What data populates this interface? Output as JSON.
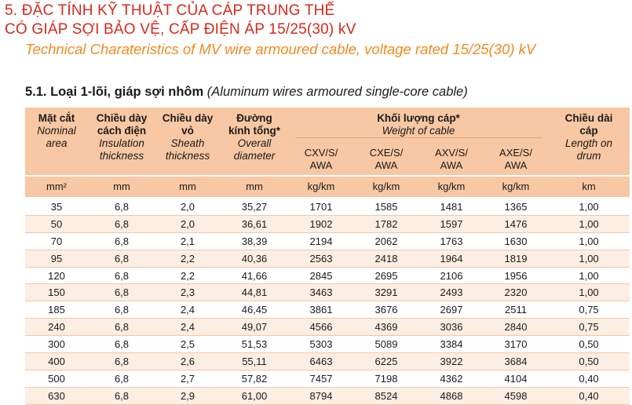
{
  "heading": {
    "vi_line1": "5. ĐẶC TÍNH KỸ THUẬT CỦA CÁP TRUNG THẾ",
    "vi_line2": "CÓ GIÁP SỢI BẢO VỆ, CẤP ĐIỆN ÁP 15/25(30) kV",
    "en": "Technical Charateristics of MV wire armoured cable, voltage rated 15/25(30) kV"
  },
  "section": {
    "vi": "5.1. Loại 1-lõi, giáp sợi nhôm",
    "en": "(Aluminum wires armoured single-core cable)"
  },
  "columns": {
    "area": {
      "vi": "Mặt cắt",
      "en1": "Nominal",
      "en2": "area",
      "unit": "mm²"
    },
    "insulation": {
      "vi1": "Chiều dày",
      "vi2": "cách điện",
      "en1": "Insulation",
      "en2": "thickness",
      "unit": "mm"
    },
    "sheath": {
      "vi1": "Chiều dày",
      "vi2": "vỏ",
      "en1": "Sheath",
      "en2": "thickness",
      "unit": "mm"
    },
    "diameter": {
      "vi1": "Đường",
      "vi2": "kính tổng*",
      "en1": "Overall",
      "en2": "diameter",
      "unit": "mm"
    },
    "weight": {
      "vi": "Khối lượng cáp*",
      "en": "Weight of cable"
    },
    "w1": {
      "l1": "CXV/S/",
      "l2": "AWA",
      "unit": "kg/km"
    },
    "w2": {
      "l1": "CXE/S/",
      "l2": "AWA",
      "unit": "kg/km"
    },
    "w3": {
      "l1": "AXV/S/",
      "l2": "AWA",
      "unit": "kg/km"
    },
    "w4": {
      "l1": "AXE/S/",
      "l2": "AWA",
      "unit": "kg/km"
    },
    "length": {
      "vi1": "Chiều dài",
      "vi2": "cáp",
      "en1": "Length on",
      "en2": "drum",
      "unit": "km"
    }
  },
  "rows": [
    [
      "35",
      "6,8",
      "2,0",
      "35,27",
      "1701",
      "1585",
      "1481",
      "1365",
      "1,00"
    ],
    [
      "50",
      "6,8",
      "2,0",
      "36,61",
      "1902",
      "1782",
      "1597",
      "1476",
      "1,00"
    ],
    [
      "70",
      "6,8",
      "2,1",
      "38,39",
      "2194",
      "2062",
      "1763",
      "1630",
      "1,00"
    ],
    [
      "95",
      "6,8",
      "2,2",
      "40,36",
      "2563",
      "2418",
      "1964",
      "1819",
      "1,00"
    ],
    [
      "120",
      "6,8",
      "2,2",
      "41,66",
      "2845",
      "2695",
      "2106",
      "1956",
      "1,00"
    ],
    [
      "150",
      "6,8",
      "2,3",
      "44,81",
      "3463",
      "3291",
      "2493",
      "2320",
      "1,00"
    ],
    [
      "185",
      "6,8",
      "2,4",
      "46,45",
      "3861",
      "3676",
      "2697",
      "2511",
      "0,75"
    ],
    [
      "240",
      "6,8",
      "2,4",
      "49,07",
      "4566",
      "4369",
      "3036",
      "2840",
      "0,75"
    ],
    [
      "300",
      "6,8",
      "2,5",
      "51,53",
      "5303",
      "5089",
      "3384",
      "3170",
      "0,50"
    ],
    [
      "400",
      "6,8",
      "2,6",
      "55,11",
      "6463",
      "6225",
      "3922",
      "3684",
      "0,50"
    ],
    [
      "500",
      "6,8",
      "2,7",
      "57,82",
      "7457",
      "7198",
      "4362",
      "4104",
      "0,40"
    ],
    [
      "630",
      "6,8",
      "2,9",
      "61,00",
      "8794",
      "8524",
      "4868",
      "4598",
      "0,40"
    ]
  ]
}
